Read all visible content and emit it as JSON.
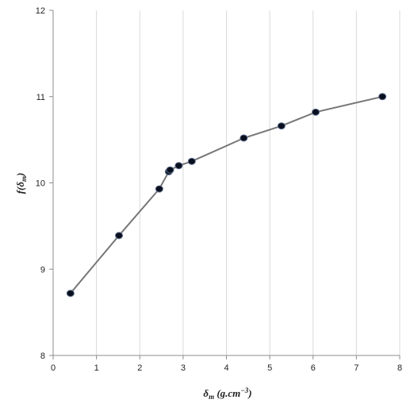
{
  "chart_data": {
    "type": "line",
    "title": "",
    "xlabel": "δm (g.cm−3)",
    "ylabel": "f(δm)",
    "xlabel_parts": {
      "base": "δ",
      "sub": "m",
      "unit_open": " (g.cm",
      "sup": "−3",
      "unit_close": ")"
    },
    "ylabel_parts": {
      "pre": "f(",
      "base": "δ",
      "sub": "m",
      "post": ")"
    },
    "xlim": [
      0,
      8
    ],
    "ylim": [
      8,
      12
    ],
    "xticks": [
      0,
      1,
      2,
      3,
      4,
      5,
      6,
      7,
      8
    ],
    "yticks": [
      8,
      9,
      10,
      11,
      12
    ],
    "grid": {
      "vertical": true,
      "horizontal": false
    },
    "legend": "none",
    "colors": {
      "line": "#777777",
      "marker": "#0a0f1e",
      "marker_edge": "#5a6a8a",
      "grid": "#d9d9d9",
      "axis": "#8c8c8c"
    },
    "series": [
      {
        "x": [
          0.4,
          1.52,
          2.45,
          2.67,
          2.7,
          2.9,
          3.2,
          4.4,
          5.27,
          6.06,
          7.6
        ],
        "y": [
          8.72,
          9.39,
          9.93,
          10.13,
          10.15,
          10.2,
          10.25,
          10.52,
          10.66,
          10.82,
          11.0
        ]
      }
    ]
  }
}
